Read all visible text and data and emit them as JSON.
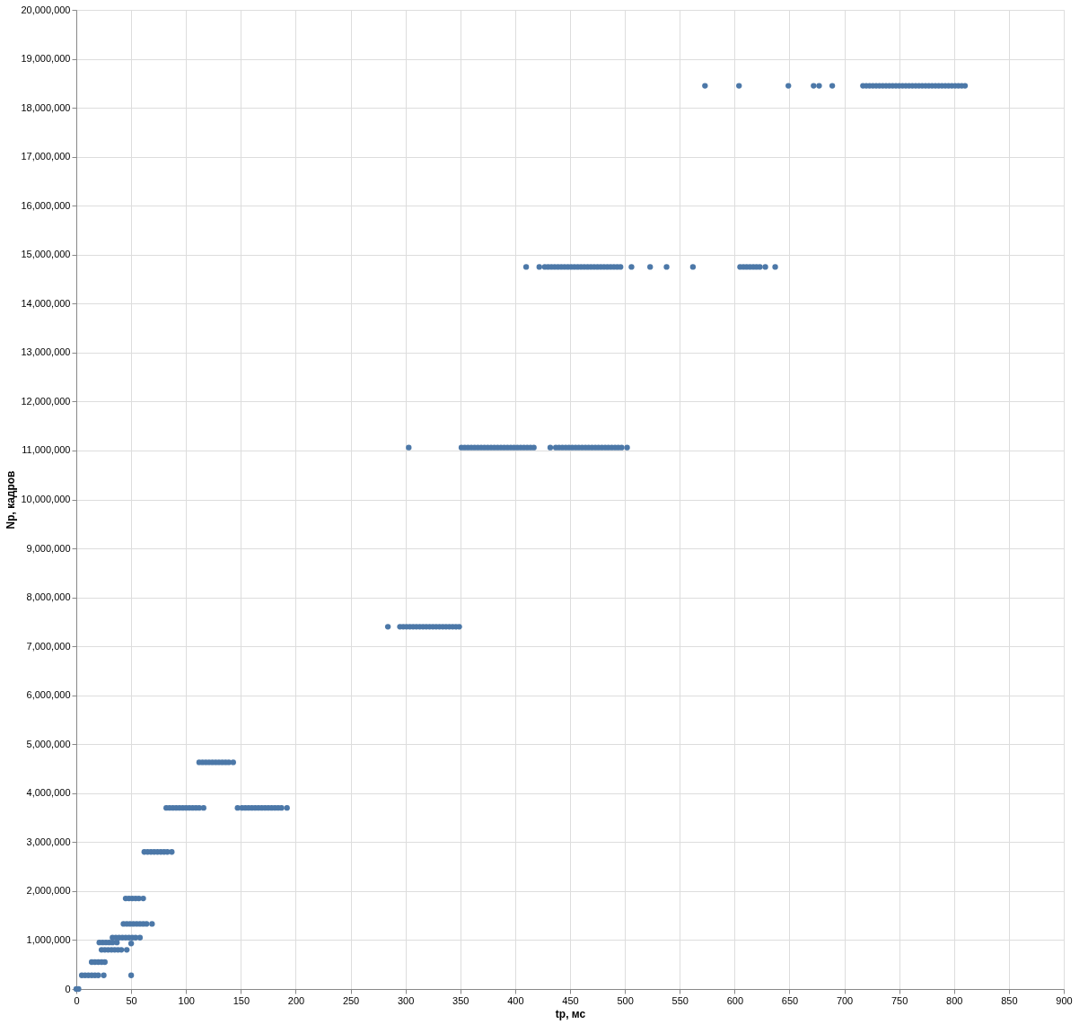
{
  "chart_data": {
    "type": "scatter",
    "xlabel": "tp, мс",
    "ylabel": "Np, кадров",
    "marker": "circle",
    "grid": true,
    "legend": false,
    "xlim": [
      0,
      900
    ],
    "xticks": [
      0,
      50,
      100,
      150,
      200,
      250,
      300,
      350,
      400,
      450,
      500,
      550,
      600,
      650,
      700,
      750,
      800,
      850,
      900
    ],
    "ylim": [
      0,
      20000000
    ],
    "yticks": [
      0,
      {
        "value": 1000000,
        "label": "1,000,000"
      },
      {
        "value": 2000000,
        "label": "2,000,000"
      },
      {
        "value": 3000000,
        "label": "3,000,000"
      },
      {
        "value": 4000000,
        "label": "4,000,000"
      },
      {
        "value": 5000000,
        "label": "5,000,000"
      },
      {
        "value": 6000000,
        "label": "6,000,000"
      },
      {
        "value": 7000000,
        "label": "7,000,000"
      },
      {
        "value": 8000000,
        "label": "8,000,000"
      },
      {
        "value": 9000000,
        "label": "9,000,000"
      },
      {
        "value": 10000000,
        "label": "10,000,000"
      },
      {
        "value": 11000000,
        "label": "11,000,000"
      },
      {
        "value": 12000000,
        "label": "12,000,000"
      },
      {
        "value": 13000000,
        "label": "13,000,000"
      },
      {
        "value": 14000000,
        "label": "14,000,000"
      },
      {
        "value": 15000000,
        "label": "15,000,000"
      },
      {
        "value": 16000000,
        "label": "16,000,000"
      },
      {
        "value": 17000000,
        "label": "17,000,000"
      },
      {
        "value": 18000000,
        "label": "18,000,000"
      },
      {
        "value": 19000000,
        "label": "19,000,000"
      },
      {
        "value": 20000000,
        "label": "20,000,000"
      }
    ],
    "series": [
      {
        "color": "#4c78a8",
        "x": [
          0,
          2,
          5,
          8,
          11,
          14,
          17,
          20,
          25,
          50,
          14,
          17,
          20,
          23,
          26,
          23,
          26,
          29,
          32,
          35,
          38,
          41,
          46,
          21,
          24,
          27,
          30,
          33,
          37,
          50,
          33,
          36,
          39,
          42,
          45,
          48,
          51,
          54,
          58,
          43,
          46,
          49,
          52,
          55,
          58,
          61,
          64,
          69,
          45,
          48,
          51,
          54,
          57,
          61,
          62,
          65,
          68,
          71,
          74,
          77,
          80,
          83,
          87,
          82,
          85,
          88,
          91,
          94,
          97,
          100,
          103,
          106,
          109,
          112,
          116,
          147,
          151,
          154,
          157,
          160,
          163,
          166,
          169,
          172,
          175,
          178,
          181,
          184,
          187,
          192,
          112,
          115,
          118,
          121,
          124,
          127,
          130,
          133,
          136,
          139,
          143,
          284,
          295,
          298,
          301,
          304,
          307,
          310,
          313,
          316,
          319,
          322,
          325,
          328,
          331,
          334,
          337,
          340,
          343,
          346,
          349,
          303,
          351,
          354,
          357,
          360,
          363,
          366,
          369,
          372,
          375,
          378,
          381,
          384,
          387,
          390,
          393,
          396,
          399,
          402,
          405,
          408,
          411,
          414,
          417,
          432,
          437,
          440,
          443,
          446,
          449,
          452,
          455,
          458,
          461,
          464,
          467,
          470,
          473,
          476,
          479,
          482,
          485,
          488,
          491,
          494,
          497,
          502,
          410,
          422,
          427,
          430,
          433,
          436,
          439,
          442,
          445,
          448,
          451,
          454,
          457,
          460,
          463,
          466,
          469,
          472,
          475,
          478,
          481,
          484,
          487,
          490,
          493,
          496,
          506,
          523,
          538,
          562,
          605,
          608,
          611,
          614,
          617,
          620,
          623,
          628,
          637,
          573,
          604,
          649,
          672,
          677,
          689,
          717,
          720,
          723,
          726,
          729,
          732,
          735,
          738,
          741,
          744,
          747,
          750,
          753,
          756,
          759,
          762,
          765,
          768,
          771,
          774,
          777,
          780,
          783,
          786,
          789,
          792,
          795,
          798,
          801,
          804,
          807,
          810
        ],
        "values": [
          0,
          0,
          280000,
          280000,
          280000,
          280000,
          280000,
          280000,
          280000,
          280000,
          550000,
          550000,
          550000,
          550000,
          550000,
          800000,
          800000,
          800000,
          800000,
          800000,
          800000,
          800000,
          800000,
          950000,
          950000,
          950000,
          950000,
          950000,
          950000,
          930000,
          1050000,
          1050000,
          1050000,
          1050000,
          1050000,
          1050000,
          1050000,
          1050000,
          1050000,
          1330000,
          1330000,
          1330000,
          1330000,
          1330000,
          1330000,
          1330000,
          1330000,
          1330000,
          1850000,
          1850000,
          1850000,
          1850000,
          1850000,
          1850000,
          2800000,
          2800000,
          2800000,
          2800000,
          2800000,
          2800000,
          2800000,
          2800000,
          2800000,
          3700000,
          3700000,
          3700000,
          3700000,
          3700000,
          3700000,
          3700000,
          3700000,
          3700000,
          3700000,
          3700000,
          3700000,
          3700000,
          3700000,
          3700000,
          3700000,
          3700000,
          3700000,
          3700000,
          3700000,
          3700000,
          3700000,
          3700000,
          3700000,
          3700000,
          3700000,
          3700000,
          4630000,
          4630000,
          4630000,
          4630000,
          4630000,
          4630000,
          4630000,
          4630000,
          4630000,
          4630000,
          4630000,
          7400000,
          7400000,
          7400000,
          7400000,
          7400000,
          7400000,
          7400000,
          7400000,
          7400000,
          7400000,
          7400000,
          7400000,
          7400000,
          7400000,
          7400000,
          7400000,
          7400000,
          7400000,
          7400000,
          7400000,
          11060000,
          11060000,
          11060000,
          11060000,
          11060000,
          11060000,
          11060000,
          11060000,
          11060000,
          11060000,
          11060000,
          11060000,
          11060000,
          11060000,
          11060000,
          11060000,
          11060000,
          11060000,
          11060000,
          11060000,
          11060000,
          11060000,
          11060000,
          11060000,
          11060000,
          11060000,
          11060000,
          11060000,
          11060000,
          11060000,
          11060000,
          11060000,
          11060000,
          11060000,
          11060000,
          11060000,
          11060000,
          11060000,
          11060000,
          11060000,
          11060000,
          11060000,
          11060000,
          11060000,
          11060000,
          11060000,
          11060000,
          14750000,
          14750000,
          14750000,
          14750000,
          14750000,
          14750000,
          14750000,
          14750000,
          14750000,
          14750000,
          14750000,
          14750000,
          14750000,
          14750000,
          14750000,
          14750000,
          14750000,
          14750000,
          14750000,
          14750000,
          14750000,
          14750000,
          14750000,
          14750000,
          14750000,
          14750000,
          14750000,
          14750000,
          14750000,
          14750000,
          14750000,
          14750000,
          14750000,
          14750000,
          14750000,
          14750000,
          14750000,
          14750000,
          14750000,
          18450000,
          18450000,
          18450000,
          18450000,
          18450000,
          18450000,
          18450000,
          18450000,
          18450000,
          18450000,
          18450000,
          18450000,
          18450000,
          18450000,
          18450000,
          18450000,
          18450000,
          18450000,
          18450000,
          18450000,
          18450000,
          18450000,
          18450000,
          18450000,
          18450000,
          18450000,
          18450000,
          18450000,
          18450000,
          18450000,
          18450000,
          18450000,
          18450000,
          18450000,
          18450000,
          18450000,
          18450000,
          18450000
        ]
      }
    ]
  }
}
